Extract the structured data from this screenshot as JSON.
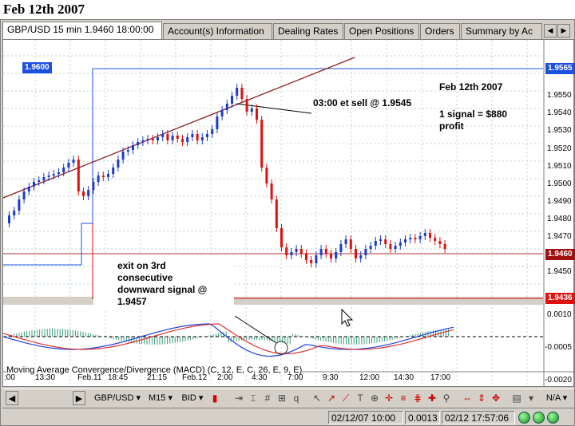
{
  "page": {
    "title": "Feb 12th 2007"
  },
  "tabs": [
    {
      "label": "GBP/USD 15 min 1.9460 18:00:00",
      "active": true
    },
    {
      "label": "Account(s) Information"
    },
    {
      "label": "Dealing Rates"
    },
    {
      "label": "Open Positions"
    },
    {
      "label": "Orders"
    },
    {
      "label": "Summary by Ac"
    }
  ],
  "tab_scroll": {
    "left": "◀",
    "right": "▶"
  },
  "chart": {
    "price_axis": [
      "1.9550",
      "1.9540",
      "1.9530",
      "1.9520",
      "1.9510",
      "1.9500",
      "1.9490",
      "1.9480",
      "1.9470",
      "1.9450"
    ],
    "macd_axis": [
      "0.0010",
      "-0.0005",
      "-0.0020"
    ],
    "time_axis": [
      ":00",
      "13:30",
      "Feb.11",
      "18:45",
      "21:15",
      "Feb.12",
      "2:00",
      "4:30",
      "7:00",
      "9:30",
      "12:00",
      "14:30",
      "17:00"
    ],
    "price_tags": {
      "left": "1.9600",
      "top": "1.9565",
      "current": "1.9460",
      "bottom": "1.9436"
    },
    "annotations": {
      "date": "Feb 12th 2007",
      "result": "1 signal = $880\nprofit",
      "entry": "03:00 et sell @ 1.9545",
      "exit": "exit on 3rd\nconsecutive\ndownward signal @\n1.9457"
    },
    "indicator_label": "Moving Average Convergence/Divergence (MACD) (C, 12, E, C, 26, E, 9, E)",
    "colors": {
      "up": "#1e3cc8",
      "down": "#e01010",
      "signal": "#e03030",
      "macd": "#2040e0",
      "histogram": "#3a9a7a",
      "level": "#cc0000"
    }
  },
  "toolbar": {
    "symbol": "GBP/USD ▾",
    "period": "M15 ▾",
    "side": "BID ▾",
    "na": "N/A ▾"
  },
  "status": {
    "left_time": "02/12/07 10:00",
    "value": "0.0013",
    "right_time": "02/12 17:57:06"
  }
}
